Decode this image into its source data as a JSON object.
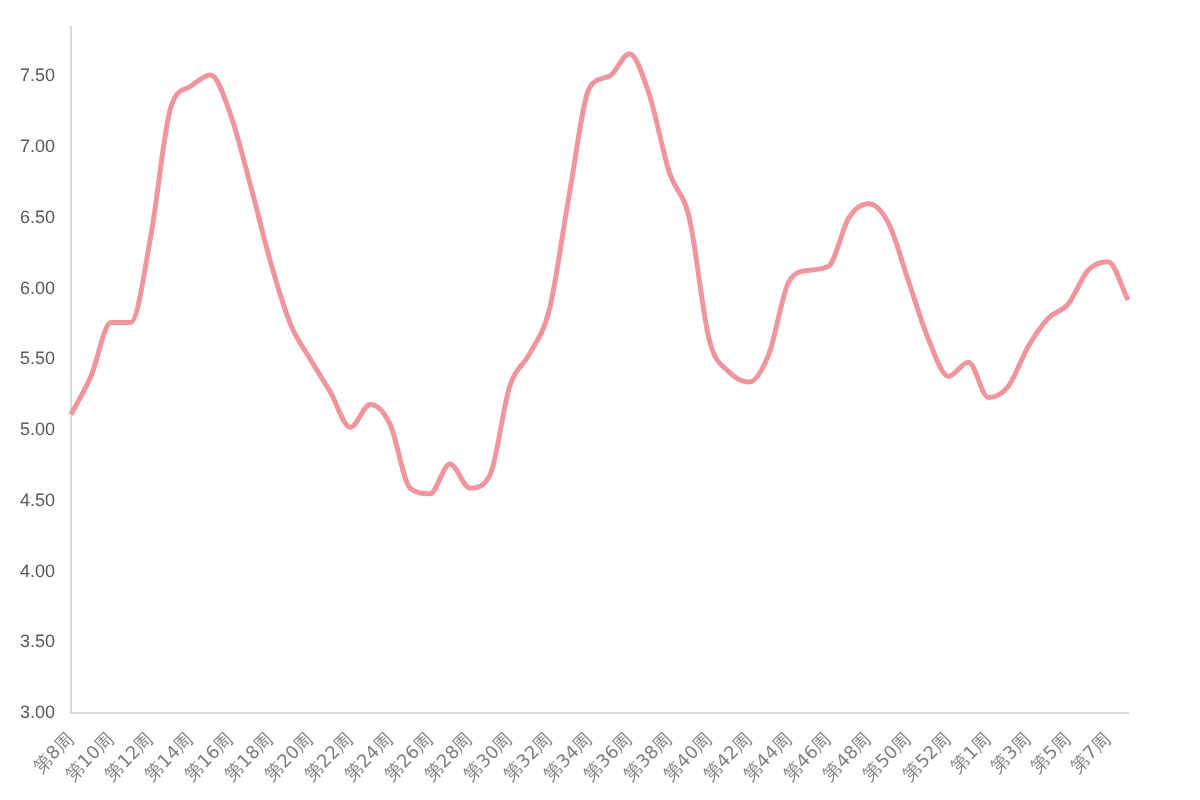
{
  "chart_data": {
    "type": "line",
    "categories": [
      "第8周",
      null,
      "第10周",
      null,
      "第12周",
      null,
      "第14周",
      null,
      "第16周",
      null,
      "第18周",
      null,
      "第20周",
      null,
      "第22周",
      null,
      "第24周",
      null,
      "第26周",
      null,
      "第28周",
      null,
      "第30周",
      null,
      "第32周",
      null,
      "第34周",
      null,
      "第36周",
      null,
      "第38周",
      null,
      "第40周",
      null,
      "第42周",
      null,
      "第44周",
      null,
      "第46周",
      null,
      "第48周",
      null,
      "第50周",
      null,
      "第52周",
      null,
      "第1周",
      null,
      "第3周",
      null,
      "第5周",
      null,
      "第7周",
      null
    ],
    "series": [
      {
        "color": "#f0949e",
        "values": [
          5.11,
          5.38,
          5.76,
          5.76,
          6.37,
          7.28,
          7.43,
          7.51,
          7.23,
          6.73,
          6.19,
          5.75,
          5.5,
          5.27,
          5.02,
          5.18,
          5.04,
          4.59,
          4.55,
          4.76,
          4.59,
          4.68,
          5.31,
          5.54,
          5.86,
          6.68,
          7.42,
          7.5,
          7.66,
          7.37,
          6.82,
          6.5,
          5.64,
          5.41,
          5.34,
          5.54,
          6.05,
          6.13,
          6.16,
          6.5,
          6.6,
          6.46,
          6.05,
          5.64,
          5.38,
          5.48,
          5.23,
          5.31,
          5.59,
          5.79,
          5.89,
          6.13,
          6.19,
          5.92
        ]
      }
    ],
    "ylim": [
      3,
      7.85
    ],
    "yticks": [
      {
        "value": 3,
        "label": "3.00"
      },
      {
        "value": 3.5,
        "label": "3.50"
      },
      {
        "value": 4,
        "label": "4.00"
      },
      {
        "value": 4.5,
        "label": "4.50"
      },
      {
        "value": 5,
        "label": "5.00"
      },
      {
        "value": 5.5,
        "label": "5.50"
      },
      {
        "value": 6,
        "label": "6.00"
      },
      {
        "value": 6.5,
        "label": "6.50"
      },
      {
        "value": 7,
        "label": "7.00"
      },
      {
        "value": 7.5,
        "label": "7.50"
      }
    ],
    "grid": false,
    "legend": false,
    "marker": "none",
    "line_style": "solid"
  }
}
